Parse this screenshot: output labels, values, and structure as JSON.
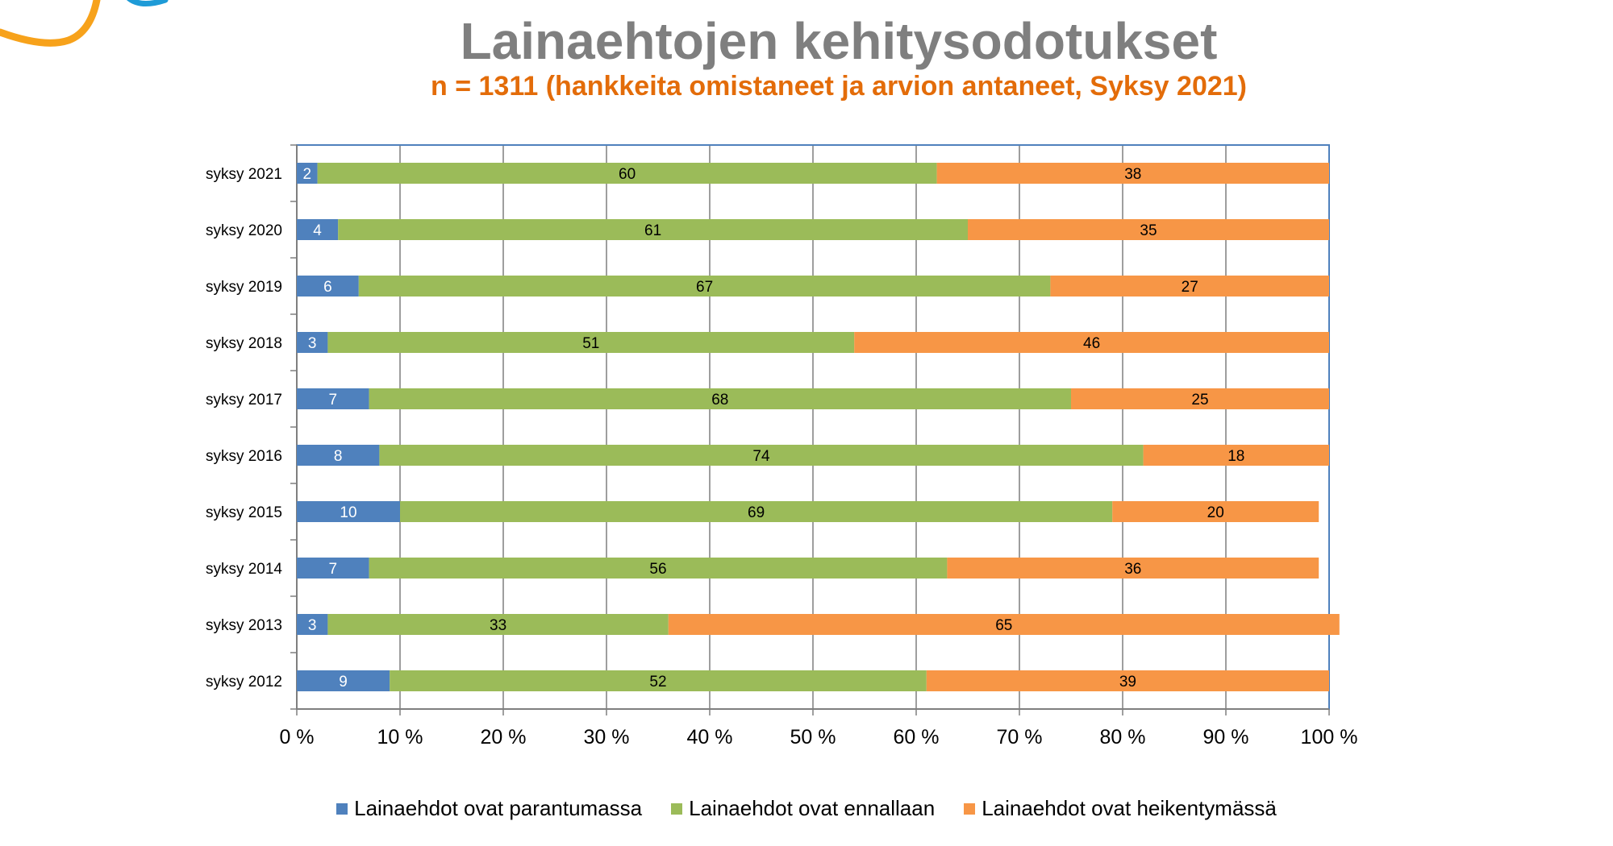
{
  "chart_data": {
    "type": "bar",
    "orientation": "horizontal",
    "stacked": true,
    "title": "Lainaehtojen kehitysodotukset",
    "subtitle": "n = 1311 (hankkeita omistaneet ja arvion antaneet, Syksy 2021)",
    "categories": [
      "syksy 2021",
      "syksy 2020",
      "syksy 2019",
      "syksy 2018",
      "syksy 2017",
      "syksy 2016",
      "syksy 2015",
      "syksy 2014",
      "syksy 2013",
      "syksy 2012"
    ],
    "series": [
      {
        "name": "Lainaehdot ovat parantumassa",
        "color": "#4f81bd",
        "label_color": "#ffffff",
        "values": [
          2,
          4,
          6,
          3,
          7,
          8,
          10,
          7,
          3,
          9
        ]
      },
      {
        "name": "Lainaehdot ovat ennallaan",
        "color": "#9bbb59",
        "label_color": "#000000",
        "values": [
          60,
          61,
          67,
          51,
          68,
          74,
          69,
          56,
          33,
          52
        ]
      },
      {
        "name": "Lainaehdot ovat heikentymässä",
        "color": "#f79646",
        "label_color": "#000000",
        "values": [
          38,
          35,
          27,
          46,
          25,
          18,
          20,
          36,
          65,
          39
        ]
      }
    ],
    "xlim": [
      0,
      100
    ],
    "xticks": [
      "0 %",
      "10 %",
      "20 %",
      "30 %",
      "40 %",
      "50 %",
      "60 %",
      "70 %",
      "80 %",
      "90 %",
      "100 %"
    ],
    "grid": true,
    "legend_position": "bottom"
  },
  "colors": {
    "title": "#7f7f7f",
    "subtitle": "#e36c09",
    "gridline": "#7f7f7f",
    "plot_border": "#4f81bd",
    "deco_orange": "#f7a21b",
    "deco_blue": "#1e9bd7"
  }
}
